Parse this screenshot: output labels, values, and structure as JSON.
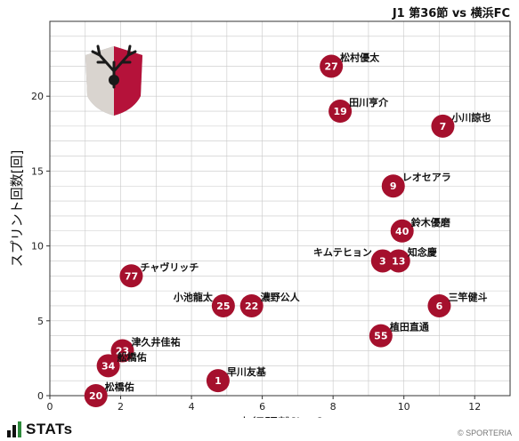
{
  "header": {
    "subtitle": "J1 第36節 vs 横浜FC"
  },
  "footer": {
    "brand": "STATs",
    "credit": "© SPORTERIA"
  },
  "colors": {
    "marker": "#a5102d",
    "grid": "#c8c8c8"
  },
  "chart_data": {
    "type": "scatter",
    "xlabel": "走行距離[km]",
    "ylabel": "スプリント回数[回]",
    "xlim": [
      0,
      13
    ],
    "ylim": [
      0,
      25
    ],
    "xticks": [
      0,
      2,
      4,
      6,
      8,
      10,
      12
    ],
    "yticks": [
      0,
      5,
      10,
      15,
      20
    ],
    "grid": true,
    "points": [
      {
        "number": "27",
        "name": "松村優太",
        "x": 7.95,
        "y": 22
      },
      {
        "number": "19",
        "name": "田川亨介",
        "x": 8.2,
        "y": 19
      },
      {
        "number": "7",
        "name": "小川諒也",
        "x": 11.1,
        "y": 18
      },
      {
        "number": "9",
        "name": "レオセアラ",
        "x": 9.7,
        "y": 14
      },
      {
        "number": "40",
        "name": "鈴木優磨",
        "x": 9.95,
        "y": 11
      },
      {
        "number": "3",
        "name": "キムテヒョン",
        "x": 9.4,
        "y": 9
      },
      {
        "number": "13",
        "name": "知念慶",
        "x": 9.85,
        "y": 9
      },
      {
        "number": "77",
        "name": "チャヴリッチ",
        "x": 2.3,
        "y": 8
      },
      {
        "number": "25",
        "name": "小池龍太",
        "x": 4.9,
        "y": 6
      },
      {
        "number": "22",
        "name": "濃野公人",
        "x": 5.7,
        "y": 6
      },
      {
        "number": "6",
        "name": "三竿健斗",
        "x": 11.0,
        "y": 6
      },
      {
        "number": "55",
        "name": "植田直通",
        "x": 9.35,
        "y": 4
      },
      {
        "number": "23",
        "name": "津久井佳祐",
        "x": 2.05,
        "y": 3
      },
      {
        "number": "34",
        "name": "舩橋佑",
        "x": 1.65,
        "y": 2
      },
      {
        "number": "1",
        "name": "早川友基",
        "x": 4.75,
        "y": 1
      },
      {
        "number": "20",
        "name": "松橋佑",
        "x": 1.3,
        "y": 0
      }
    ]
  }
}
